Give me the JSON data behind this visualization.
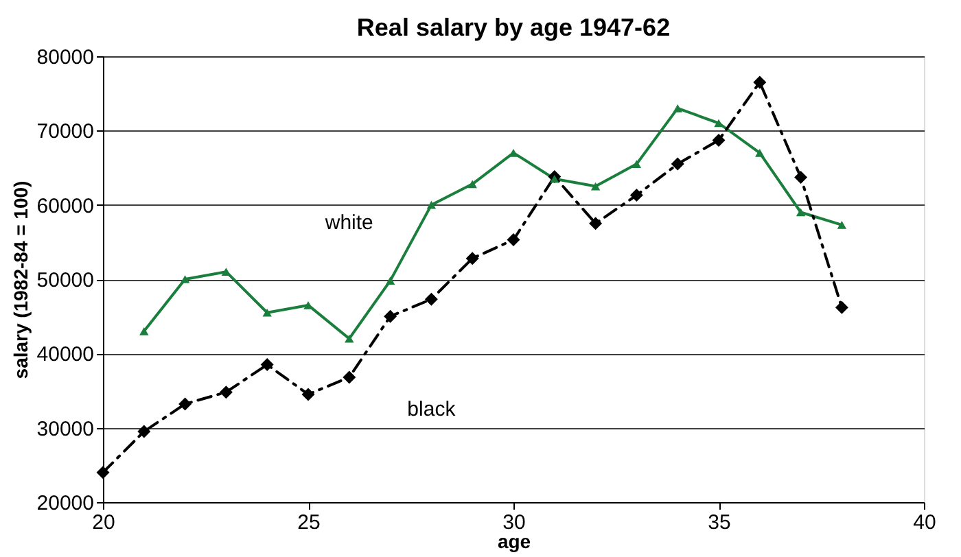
{
  "chart_data": {
    "type": "line",
    "title": "Real salary by age 1947-62",
    "xlabel": "age",
    "ylabel": "salary (1982-84 = 100)",
    "xlim": [
      20,
      40
    ],
    "xticks": [
      20,
      25,
      30,
      35,
      40
    ],
    "ylim": [
      20000,
      80000
    ],
    "yticks": [
      20000,
      30000,
      40000,
      50000,
      60000,
      70000,
      80000
    ],
    "grid": "y",
    "legend": false,
    "series": [
      {
        "name": "white",
        "color": "#1a7f3c",
        "marker": "triangle",
        "line_style": "solid",
        "x": [
          21,
          22,
          23,
          24,
          25,
          26,
          27,
          28,
          29,
          30,
          31,
          32,
          33,
          34,
          35,
          36,
          37,
          38
        ],
        "values": [
          43000,
          50000,
          51000,
          45500,
          46500,
          42000,
          49800,
          60000,
          62800,
          67000,
          63500,
          62500,
          65500,
          73000,
          71000,
          67000,
          59000,
          57300
        ]
      },
      {
        "name": "black",
        "color": "#000000",
        "marker": "diamond",
        "line_style": "dashed",
        "x": [
          20,
          21,
          22,
          23,
          24,
          25,
          26,
          27,
          28,
          29,
          30,
          31,
          32,
          33,
          34,
          35,
          36,
          37,
          38
        ],
        "values": [
          24000,
          29500,
          33200,
          34800,
          38500,
          34500,
          36800,
          45000,
          47300,
          52800,
          55300,
          63800,
          57500,
          61300,
          65500,
          68700,
          76500,
          63700,
          46200
        ]
      }
    ]
  }
}
